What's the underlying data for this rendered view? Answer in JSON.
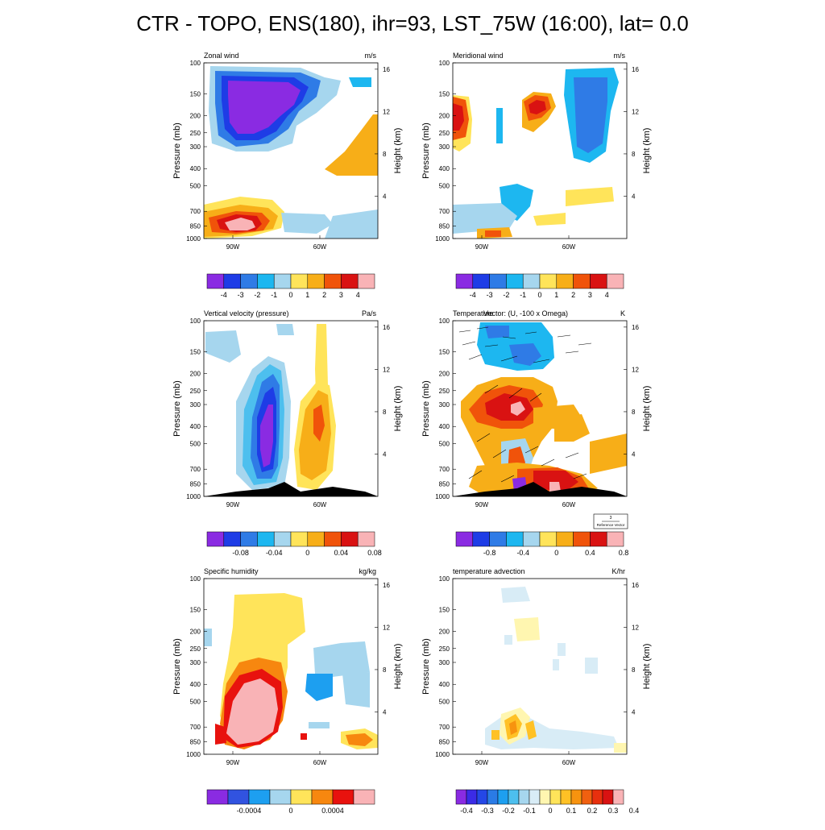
{
  "title": "CTR - TOPO, ENS(180), ihr=93, LST_75W (16:00), lat=  0.0",
  "axes": {
    "pressure_label": "Pressure (mb)",
    "height_label": "Height (km)",
    "pressure_ticks": [
      100,
      150,
      200,
      250,
      300,
      400,
      500,
      700,
      850,
      1000
    ],
    "height_ticks": [
      4,
      8,
      12,
      16
    ],
    "lon_ticks": [
      "90W",
      "60W"
    ]
  },
  "palettes": {
    "ten": [
      "#8a2be2",
      "#1e3ce6",
      "#2f7be6",
      "#1db7f0",
      "#a6d6ee",
      "#ffe45a",
      "#f7ae18",
      "#f0530a",
      "#d91212",
      "#f9b3b6"
    ],
    "eight": [
      "#8a2be2",
      "#3153e0",
      "#1d9ff0",
      "#a6d6ee",
      "#ffe45a",
      "#f7870f",
      "#e8120e",
      "#f9b3b6"
    ],
    "sixteen": [
      "#8a2be2",
      "#3b2be6",
      "#2447e6",
      "#2a7be6",
      "#1d9ff0",
      "#4dbfee",
      "#a6d6ee",
      "#d8ecf6",
      "#fff6b0",
      "#ffe45a",
      "#ffc125",
      "#f7930f",
      "#f06010",
      "#e8300e",
      "#d91212",
      "#f9b3b6"
    ]
  },
  "panels": [
    {
      "id": "zonal-wind",
      "label": "Zonal wind",
      "units": "m/s",
      "colorbar": {
        "palette": "ten",
        "labels": [
          "-4",
          "-3",
          "-2",
          "-1",
          "0",
          "1",
          "2",
          "3",
          "4"
        ]
      }
    },
    {
      "id": "meridional-wind",
      "label": "Meridional wind",
      "units": "m/s",
      "colorbar": {
        "palette": "ten",
        "labels": [
          "-4",
          "-3",
          "-2",
          "-1",
          "0",
          "1",
          "2",
          "3",
          "4"
        ]
      }
    },
    {
      "id": "vertical-velocity",
      "label": "Vertical velocity (pressure)",
      "units": "Pa/s",
      "colorbar": {
        "palette": "ten",
        "labels": [
          "",
          "-0.08",
          "",
          "-0.04",
          "",
          "0",
          "",
          "0.04",
          "",
          "0.08"
        ]
      }
    },
    {
      "id": "temperature",
      "label": "Temperature",
      "label2": "Vector: (U, -100 x Omega)",
      "units": "K",
      "reference": {
        "value": "3",
        "text": "Reference Vector"
      },
      "colorbar": {
        "palette": "ten",
        "labels": [
          "",
          "-0.8",
          "",
          "-0.4",
          "",
          "0",
          "",
          "0.4",
          "",
          "0.8"
        ]
      }
    },
    {
      "id": "specific-humidity",
      "label": "Specific humidity",
      "units": "kg/kg",
      "colorbar": {
        "palette": "eight",
        "labels": [
          "",
          "-0.0004",
          "",
          "0",
          "",
          "0.0004",
          ""
        ]
      }
    },
    {
      "id": "temperature-advection",
      "label": "temperature advection",
      "units": "K/hr",
      "colorbar": {
        "palette": "sixteen",
        "labels": [
          "-0.4",
          "",
          "-0.3",
          "",
          "-0.2",
          "",
          "-0.1",
          "",
          "0",
          "",
          "0.1",
          "",
          "0.2",
          "",
          "0.3",
          "",
          "0.4"
        ]
      }
    }
  ]
}
